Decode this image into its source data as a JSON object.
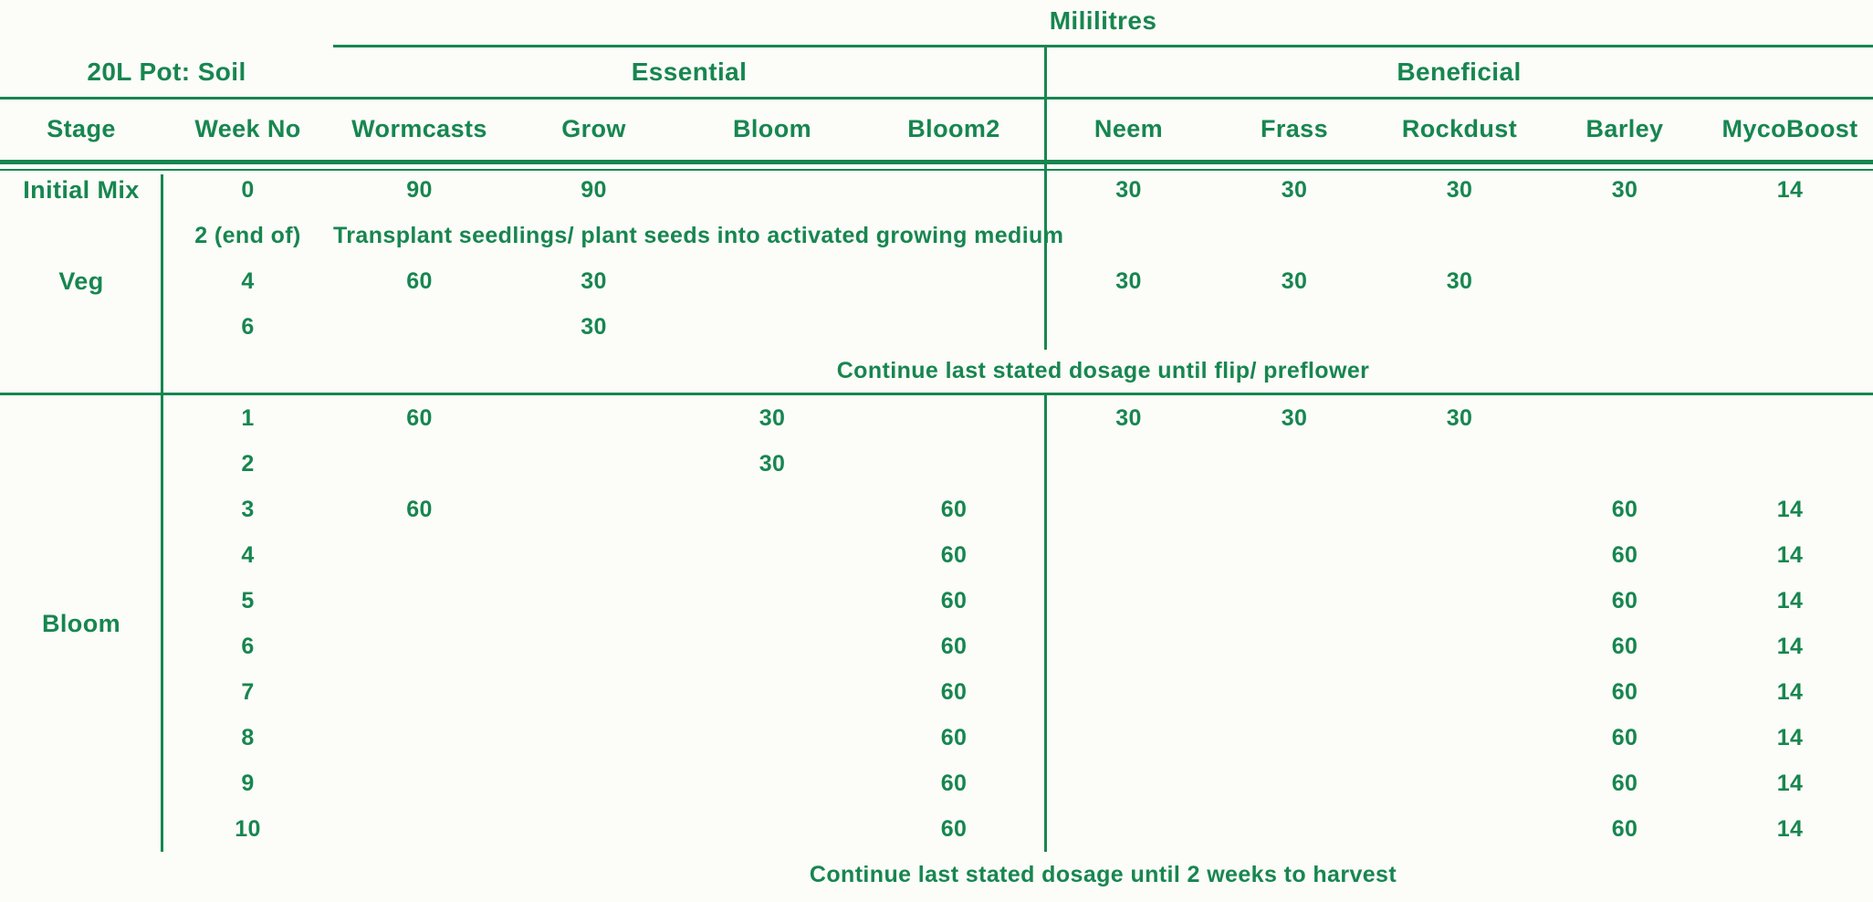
{
  "theme": {
    "accent_color": "#17864f",
    "background_color": "#fcfcf9"
  },
  "title": {
    "units_label": "Mililitres",
    "pot_label": "20L Pot: Soil"
  },
  "groups": {
    "essential": "Essential",
    "beneficial": "Beneficial"
  },
  "columns": [
    "Stage",
    "Week No",
    "Wormcasts",
    "Grow",
    "Bloom",
    "Bloom2",
    "Neem",
    "Frass",
    "Rockdust",
    "Barley",
    "MycoBoost"
  ],
  "stages": {
    "initial_mix": "Initial Mix",
    "veg": "Veg",
    "bloom": "Bloom"
  },
  "table": {
    "rows": [
      {
        "week": "0",
        "values": [
          "90",
          "90",
          "",
          "",
          "30",
          "30",
          "30",
          "30",
          "14"
        ]
      },
      {
        "week": "2 (end of)",
        "note": "Transplant seedlings/ plant seeds into activated growing medium",
        "note_span": "essential"
      },
      {
        "week": "4",
        "values": [
          "60",
          "30",
          "",
          "",
          "30",
          "30",
          "30",
          "",
          ""
        ]
      },
      {
        "week": "6",
        "values": [
          "",
          "30",
          "",
          "",
          "",
          "",
          "",
          "",
          ""
        ]
      },
      {
        "note": "Continue last stated dosage until flip/ preflower",
        "note_span": "all",
        "section_end": true
      },
      {
        "week": "1",
        "values": [
          "60",
          "",
          "30",
          "",
          "30",
          "30",
          "30",
          "",
          ""
        ]
      },
      {
        "week": "2",
        "values": [
          "",
          "",
          "30",
          "",
          "",
          "",
          "",
          "",
          ""
        ]
      },
      {
        "week": "3",
        "values": [
          "60",
          "",
          "",
          "60",
          "",
          "",
          "",
          "60",
          "14"
        ]
      },
      {
        "week": "4",
        "values": [
          "",
          "",
          "",
          "60",
          "",
          "",
          "",
          "60",
          "14"
        ]
      },
      {
        "week": "5",
        "values": [
          "",
          "",
          "",
          "60",
          "",
          "",
          "",
          "60",
          "14"
        ]
      },
      {
        "week": "6",
        "values": [
          "",
          "",
          "",
          "60",
          "",
          "",
          "",
          "60",
          "14"
        ]
      },
      {
        "week": "7",
        "values": [
          "",
          "",
          "",
          "60",
          "",
          "",
          "",
          "60",
          "14"
        ]
      },
      {
        "week": "8",
        "values": [
          "",
          "",
          "",
          "60",
          "",
          "",
          "",
          "60",
          "14"
        ]
      },
      {
        "week": "9",
        "values": [
          "",
          "",
          "",
          "60",
          "",
          "",
          "",
          "60",
          "14"
        ]
      },
      {
        "week": "10",
        "values": [
          "",
          "",
          "",
          "60",
          "",
          "",
          "",
          "60",
          "14"
        ]
      },
      {
        "note": "Continue last stated dosage until 2 weeks to harvest",
        "note_span": "all"
      }
    ]
  }
}
